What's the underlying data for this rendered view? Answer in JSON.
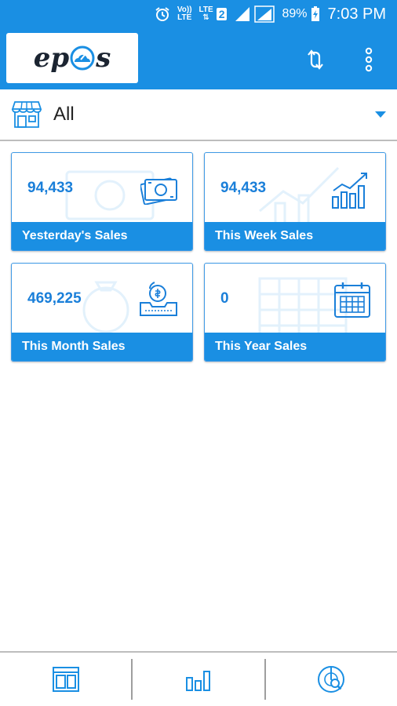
{
  "status_bar": {
    "volte_top": "Vo))",
    "volte_bottom": "LTE",
    "lte_top": "LTE",
    "lte_bottom": "⇅",
    "sim_slot": "2",
    "battery": "89%",
    "time": "7:03 PM",
    "icons": [
      "alarm-icon",
      "signal-icon",
      "battery-charging-icon"
    ]
  },
  "app_bar": {
    "logo_left": "ep",
    "logo_right": "s",
    "icons": [
      "sync-icon",
      "more-vert-icon"
    ]
  },
  "store_selector": {
    "selected": "All",
    "icon": "store-icon"
  },
  "cards": [
    {
      "value": "94,433",
      "label": "Yesterday's Sales",
      "icon": "cash-icon"
    },
    {
      "value": "94,433",
      "label": "This Week Sales",
      "icon": "bar-chart-icon"
    },
    {
      "value": "469,225",
      "label": "This Month Sales",
      "icon": "money-tray-icon"
    },
    {
      "value": "0",
      "label": "This Year Sales",
      "icon": "calendar-icon"
    }
  ],
  "bottom_nav": {
    "items": [
      "dashboard-icon",
      "reports-icon",
      "analytics-icon"
    ]
  },
  "colors": {
    "primary": "#1a8fe3",
    "value_text": "#1a7fd9",
    "card_border": "#3f9ae6"
  }
}
